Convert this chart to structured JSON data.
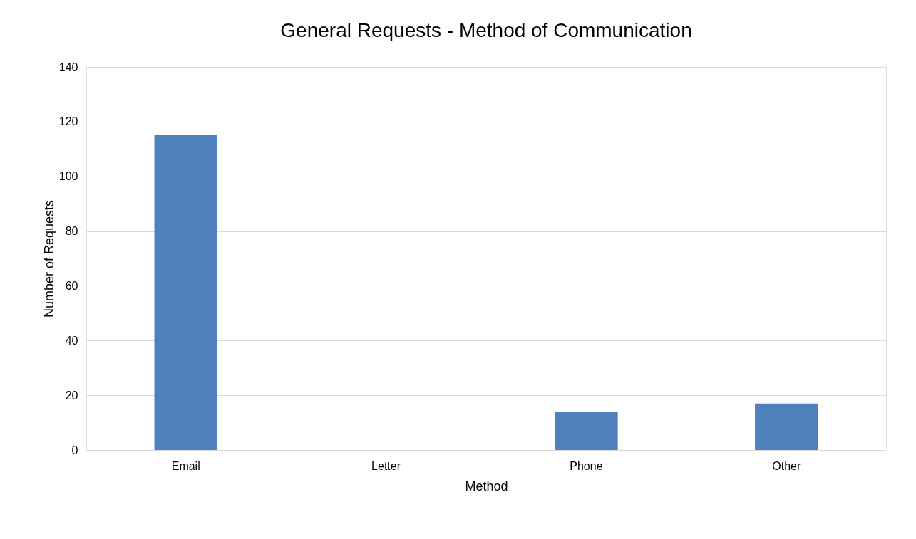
{
  "chart_data": {
    "type": "bar",
    "title": "General Requests - Method of Communication",
    "xlabel": "Method",
    "ylabel": "Number of Requests",
    "categories": [
      "Email",
      "Letter",
      "Phone",
      "Other"
    ],
    "values": [
      115,
      0,
      14,
      17
    ],
    "color": "#4f81bd",
    "ylim": [
      0,
      140
    ],
    "yticks": [
      0,
      20,
      40,
      60,
      80,
      100,
      120,
      140
    ],
    "grid": "y"
  }
}
